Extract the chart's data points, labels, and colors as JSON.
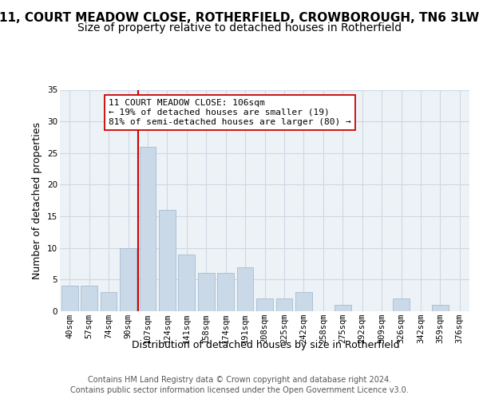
{
  "title_line1": "11, COURT MEADOW CLOSE, ROTHERFIELD, CROWBOROUGH, TN6 3LW",
  "title_line2": "Size of property relative to detached houses in Rotherfield",
  "xlabel": "Distribution of detached houses by size in Rotherfield",
  "ylabel": "Number of detached properties",
  "categories": [
    "40sqm",
    "57sqm",
    "74sqm",
    "90sqm",
    "107sqm",
    "124sqm",
    "141sqm",
    "158sqm",
    "174sqm",
    "191sqm",
    "208sqm",
    "225sqm",
    "242sqm",
    "258sqm",
    "275sqm",
    "292sqm",
    "309sqm",
    "326sqm",
    "342sqm",
    "359sqm",
    "376sqm"
  ],
  "values": [
    4,
    4,
    3,
    10,
    26,
    16,
    9,
    6,
    6,
    7,
    2,
    2,
    3,
    0,
    1,
    0,
    0,
    2,
    0,
    1,
    0
  ],
  "bar_color": "#c9d9e8",
  "bar_edgecolor": "#9ab4cc",
  "vline_color": "#cc0000",
  "vline_xindex": 4,
  "annotation_line1": "11 COURT MEADOW CLOSE: 106sqm",
  "annotation_line2": "← 19% of detached houses are smaller (19)",
  "annotation_line3": "81% of semi-detached houses are larger (80) →",
  "annotation_box_edgecolor": "#cc0000",
  "annotation_box_facecolor": "#ffffff",
  "ylim_max": 35,
  "yticks": [
    0,
    5,
    10,
    15,
    20,
    25,
    30,
    35
  ],
  "grid_color": "#cdd8e3",
  "plot_bg_color": "#edf2f7",
  "footer_line1": "Contains HM Land Registry data © Crown copyright and database right 2024.",
  "footer_line2": "Contains public sector information licensed under the Open Government Licence v3.0.",
  "title1_fontsize": 11,
  "title2_fontsize": 10,
  "ylabel_fontsize": 9,
  "xlabel_fontsize": 9,
  "tick_fontsize": 7.5,
  "annot_fontsize": 8,
  "footer_fontsize": 7
}
